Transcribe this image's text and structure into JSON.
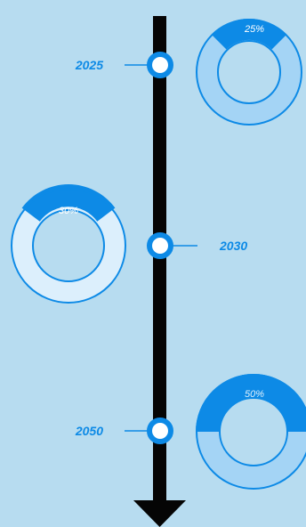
{
  "colors": {
    "background": "#b7dcf0",
    "axis": "#050505",
    "accent": "#0d8ae6",
    "ring_light": "#a4d4f5",
    "ring_lighter": "#dceffc",
    "node_fill": "#ffffff"
  },
  "chart_data": {
    "type": "donut-timeline",
    "milestones": [
      {
        "year": "2025",
        "value": 25,
        "label": "25%"
      },
      {
        "year": "2030",
        "value": 30,
        "label": "30%"
      },
      {
        "year": "2050",
        "value": 50,
        "label": "50%"
      }
    ]
  }
}
